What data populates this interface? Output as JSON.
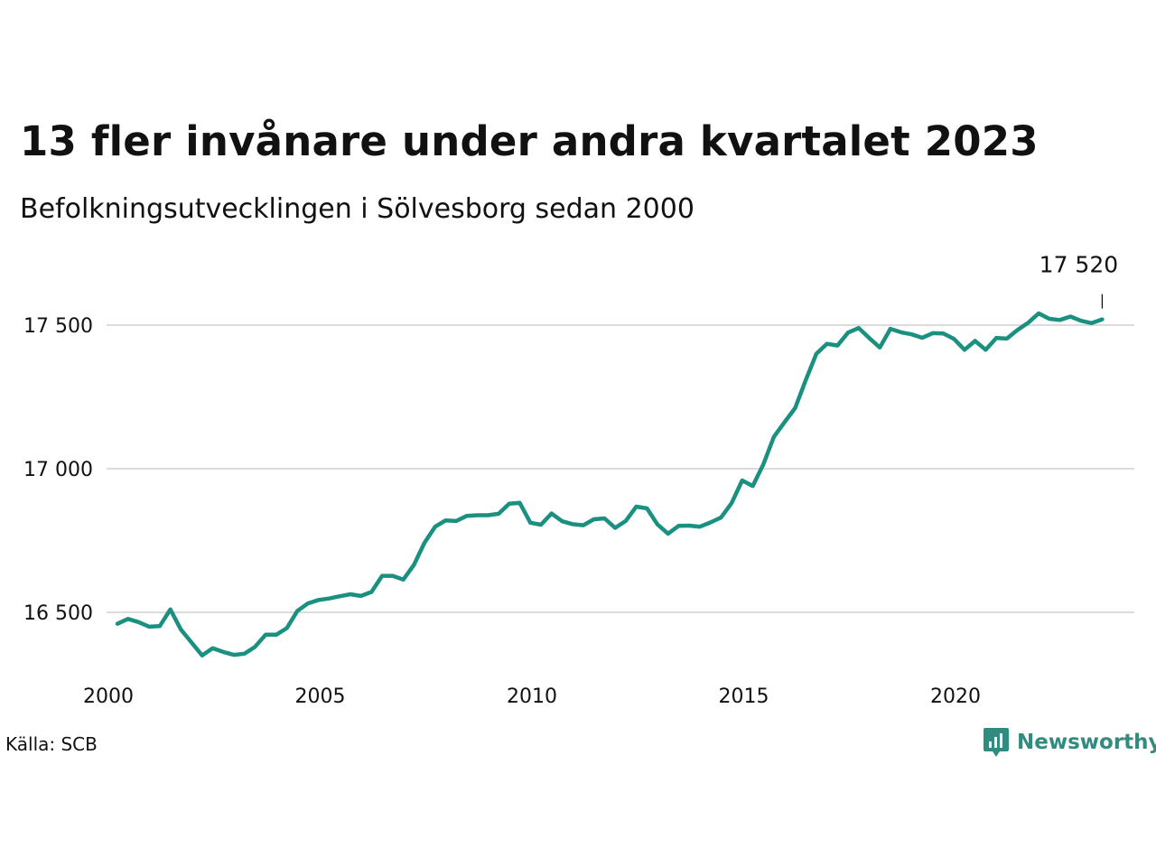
{
  "title": "13 fler invånare under andra kvartalet 2023",
  "subtitle": "Befolkningsutvecklingen i Sölvesborg sedan 2000",
  "source": "Källa: SCB",
  "brand": {
    "name": "Newsworthy",
    "icon": "newsworthy-logo-icon",
    "color": "#2f8c7e"
  },
  "colors": {
    "line": "#1a9080",
    "grid": "#dcdcdc",
    "text": "#111111"
  },
  "chart_data": {
    "type": "line",
    "title": "13 fler invånare under andra kvartalet 2023",
    "subtitle": "Befolkningsutvecklingen i Sölvesborg sedan 2000",
    "xlabel": "",
    "ylabel": "",
    "xlim": [
      2000,
      2024.3
    ],
    "ylim": [
      16280,
      17700
    ],
    "xticks": [
      {
        "value": 2000,
        "label": "2000"
      },
      {
        "value": 2005,
        "label": "2005"
      },
      {
        "value": 2010,
        "label": "2010"
      },
      {
        "value": 2015,
        "label": "2015"
      },
      {
        "value": 2020,
        "label": "2020"
      }
    ],
    "yticks": [
      {
        "value": 16500,
        "label": "16 500"
      },
      {
        "value": 17000,
        "label": "17 000"
      },
      {
        "value": 17500,
        "label": "17 500"
      }
    ],
    "grid": "horizontal",
    "end_label": "17 520",
    "series": [
      {
        "x": [
          2000.0,
          2000.25,
          2000.5,
          2000.75,
          2001.0,
          2001.25,
          2001.5,
          2001.75,
          2002.0,
          2002.25,
          2002.5,
          2002.75,
          2003.0,
          2003.25,
          2003.5,
          2003.75,
          2004.0,
          2004.25,
          2004.5,
          2004.75,
          2005.0,
          2005.25,
          2005.5,
          2005.75,
          2006.0,
          2006.25,
          2006.5,
          2006.75,
          2007.0,
          2007.25,
          2007.5,
          2007.75,
          2008.0,
          2008.25,
          2008.5,
          2008.75,
          2009.0,
          2009.25,
          2009.5,
          2009.75,
          2010.0,
          2010.25,
          2010.5,
          2010.75,
          2011.0,
          2011.25,
          2011.5,
          2011.75,
          2012.0,
          2012.25,
          2012.5,
          2012.75,
          2013.0,
          2013.25,
          2013.5,
          2013.75,
          2014.0,
          2014.25,
          2014.5,
          2014.75,
          2015.0,
          2015.25,
          2015.5,
          2015.75,
          2016.0,
          2016.25,
          2016.5,
          2016.75,
          2017.0,
          2017.25,
          2017.5,
          2017.75,
          2018.0,
          2018.25,
          2018.5,
          2018.75,
          2019.0,
          2019.25,
          2019.5,
          2019.75,
          2020.0,
          2020.25,
          2020.5,
          2020.75,
          2021.0,
          2021.25,
          2021.5,
          2021.75,
          2022.0,
          2022.25,
          2022.5,
          2022.75,
          2023.0,
          2023.25
        ],
        "values": [
          16460,
          16477,
          16466,
          16450,
          16452,
          16510,
          16440,
          16395,
          16350,
          16375,
          16362,
          16352,
          16356,
          16380,
          16422,
          16422,
          16445,
          16505,
          16531,
          16543,
          16548,
          16556,
          16563,
          16557,
          16571,
          16627,
          16627,
          16614,
          16665,
          16742,
          16798,
          16820,
          16818,
          16836,
          16838,
          16838,
          16843,
          16878,
          16881,
          16812,
          16805,
          16844,
          16817,
          16807,
          16803,
          16824,
          16827,
          16794,
          16818,
          16868,
          16862,
          16806,
          16774,
          16801,
          16802,
          16798,
          16813,
          16830,
          16880,
          16959,
          16940,
          17015,
          17111,
          17162,
          17211,
          17308,
          17400,
          17435,
          17429,
          17474,
          17490,
          17455,
          17422,
          17487,
          17475,
          17468,
          17456,
          17472,
          17471,
          17452,
          17414,
          17445,
          17414,
          17455,
          17453,
          17483,
          17508,
          17541,
          17522,
          17518,
          17530,
          17515,
          17507,
          17520
        ]
      }
    ]
  }
}
